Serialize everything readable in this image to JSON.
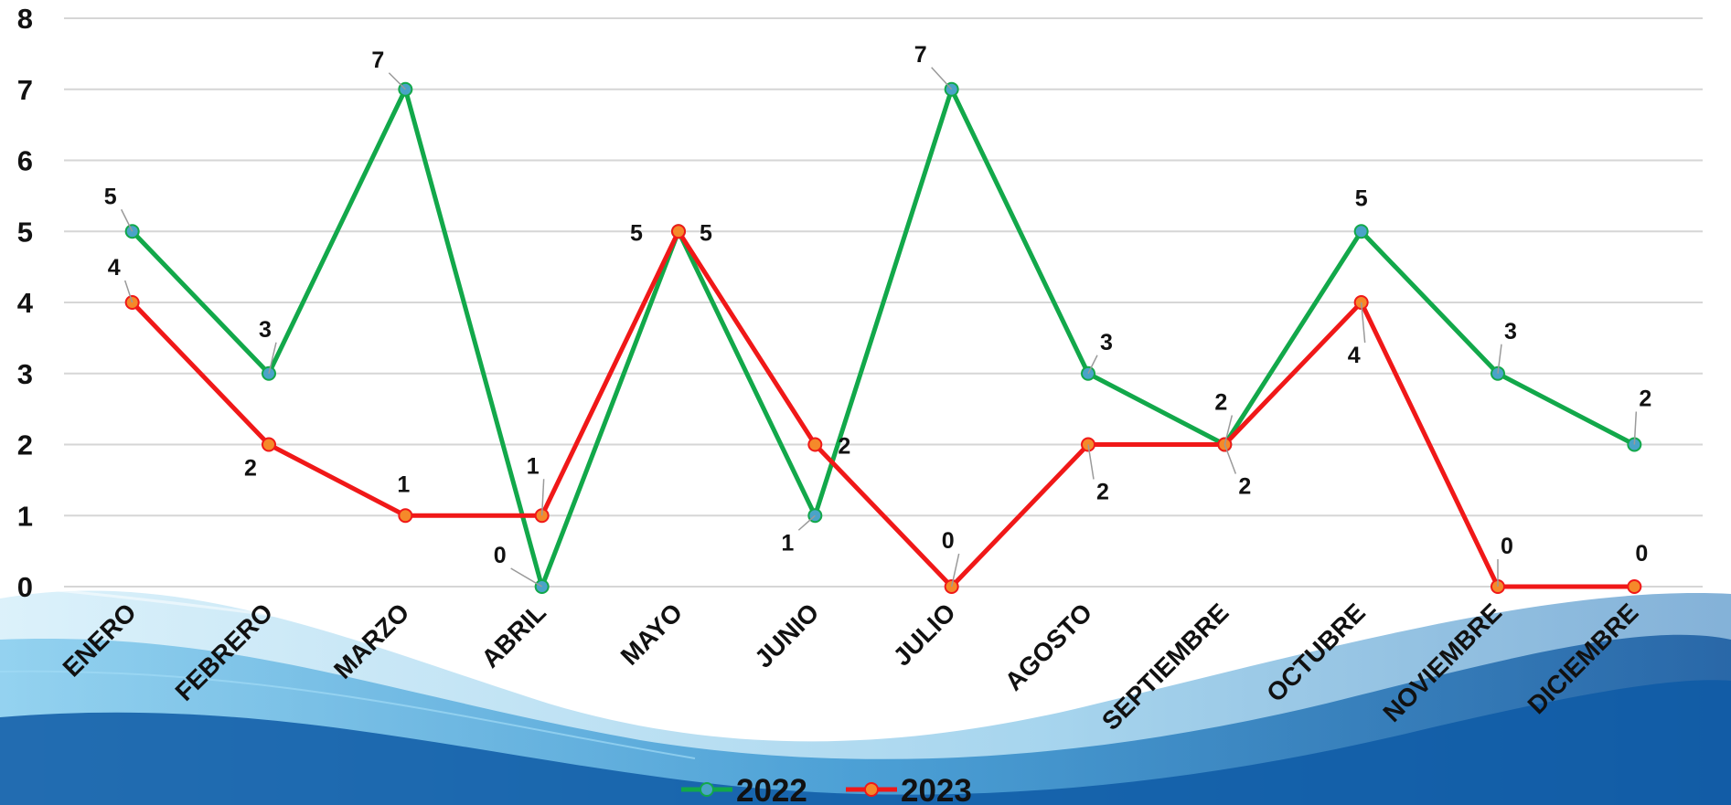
{
  "chart_data": {
    "type": "line",
    "title": "",
    "xlabel": "",
    "ylabel": "",
    "ylim": [
      0,
      8
    ],
    "yticks": [
      0,
      1,
      2,
      3,
      4,
      5,
      6,
      7,
      8
    ],
    "grid": true,
    "legend_position": "bottom",
    "categories": [
      "ENERO",
      "FEBRERO",
      "MARZO",
      "ABRIL",
      "MAYO",
      "JUNIO",
      "JULIO",
      "AGOSTO",
      "SEPTIEMBRE",
      "OCTUBRE",
      "NOVIEMBRE",
      "DICIEMBRE"
    ],
    "series": [
      {
        "name": "2022",
        "color": "#12a84a",
        "marker_color": "#4aa3c8",
        "values": [
          5,
          3,
          7,
          0,
          5,
          1,
          7,
          3,
          2,
          5,
          3,
          2
        ]
      },
      {
        "name": "2023",
        "color": "#f01818",
        "marker_color": "#f5892a",
        "values": [
          4,
          2,
          1,
          1,
          5,
          2,
          0,
          2,
          2,
          4,
          0,
          0
        ]
      }
    ]
  }
}
